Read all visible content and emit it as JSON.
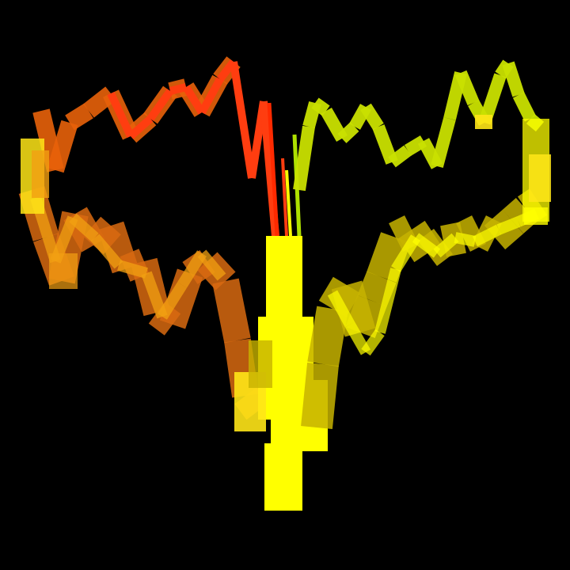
{
  "canvas": {
    "background": "#000000"
  },
  "artwork": {
    "description_visible_text": "",
    "palette": {
      "red": "#ff2a00",
      "red_orange": "#ff3d10",
      "orange": "#e8620a",
      "dark_orange": "#d86a10",
      "amber": "#f2a012",
      "yellow": "#ffff00",
      "pale_yellow": "#ffe617",
      "olive_yellow": "#c7b300",
      "yellow_green": "#c9e000",
      "lime": "#aee000"
    }
  }
}
